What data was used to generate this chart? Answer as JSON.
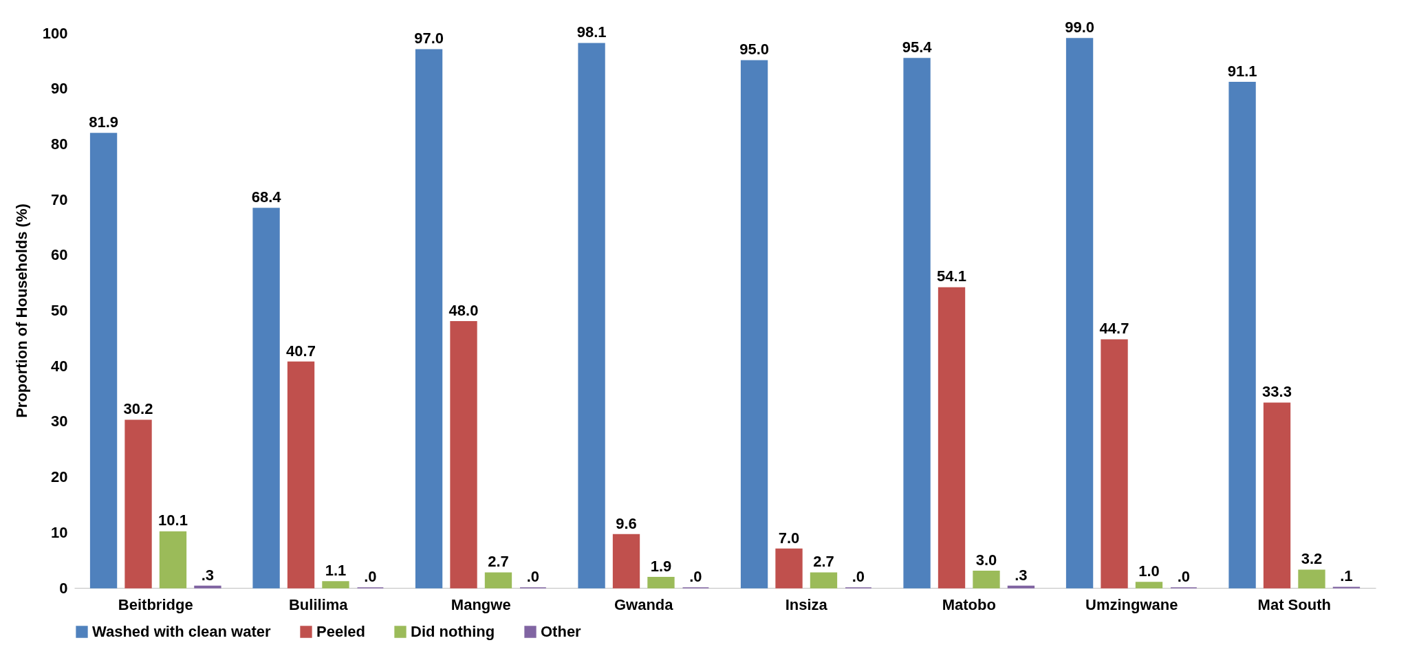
{
  "chart_data": {
    "type": "bar",
    "ylabel": "Proportion of Households (%)",
    "categories": [
      "Beitbridge",
      "Bulilima",
      "Mangwe",
      "Gwanda",
      "Insiza",
      "Matobo",
      "Umzingwane",
      "Mat South"
    ],
    "series": [
      {
        "name": "Washed with clean water",
        "color": "#4f81bd",
        "values": [
          81.9,
          68.4,
          97.0,
          98.1,
          95.0,
          95.4,
          99.0,
          91.1
        ],
        "value_labels": [
          "81.9",
          "68.4",
          "97.0",
          "98.1",
          "95.0",
          "95.4",
          "99.0",
          "91.1"
        ]
      },
      {
        "name": "Peeled",
        "color": "#c0504d",
        "values": [
          30.2,
          40.7,
          48.0,
          9.6,
          7.0,
          54.1,
          44.7,
          33.3
        ],
        "value_labels": [
          "30.2",
          "40.7",
          "48.0",
          "9.6",
          "7.0",
          "54.1",
          "44.7",
          "33.3"
        ]
      },
      {
        "name": "Did nothing",
        "color": "#9bbb59",
        "values": [
          10.1,
          1.1,
          2.7,
          1.9,
          2.7,
          3.0,
          1.0,
          3.2
        ],
        "value_labels": [
          "10.1",
          "1.1",
          "2.7",
          "1.9",
          "2.7",
          "3.0",
          "1.0",
          "3.2"
        ]
      },
      {
        "name": "Other",
        "color": "#8064a2",
        "values": [
          0.3,
          0.0,
          0.0,
          0.0,
          0.0,
          0.3,
          0.0,
          0.1
        ],
        "value_labels": [
          ".3",
          ".0",
          ".0",
          ".0",
          ".0",
          ".3",
          ".0",
          ".1"
        ]
      }
    ],
    "ylim": [
      0,
      100
    ],
    "yticks": [
      0,
      10,
      20,
      30,
      40,
      50,
      60,
      70,
      80,
      90,
      100
    ],
    "legend": "bottom"
  }
}
